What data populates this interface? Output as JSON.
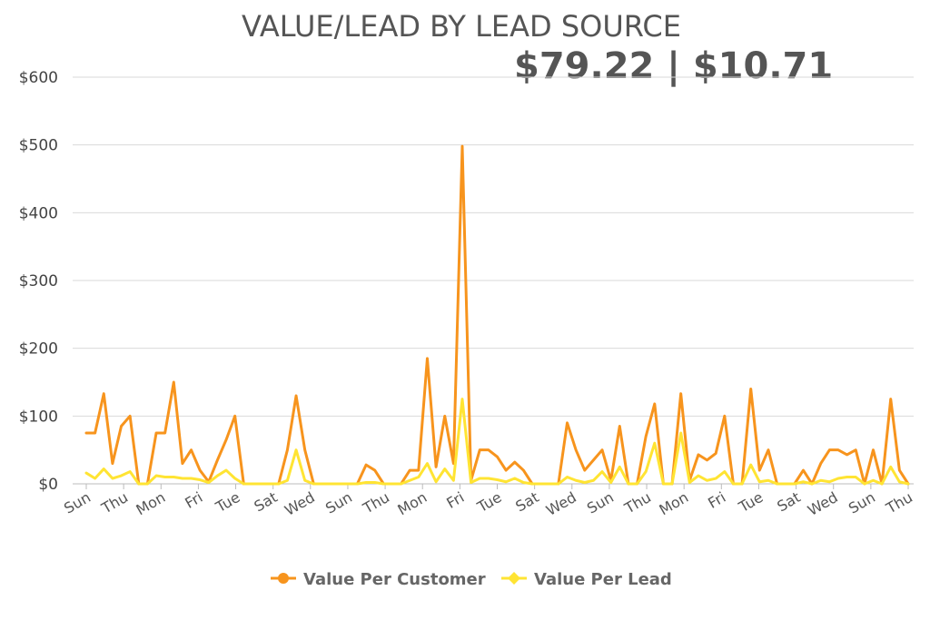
{
  "header": {
    "title": "VALUE/LEAD BY LEAD SOURCE",
    "kpi": "$79.22 | $10.71"
  },
  "chart_data": {
    "type": "line",
    "title": "VALUE/LEAD BY LEAD SOURCE",
    "ylim": [
      0,
      600
    ],
    "yticks": [
      "$0",
      "$100",
      "$200",
      "$300",
      "$400",
      "$500",
      "$600"
    ],
    "yticks_values": [
      0,
      100,
      200,
      300,
      400,
      500,
      600
    ],
    "xtick_labels": [
      "Sun",
      "Thu",
      "Mon",
      "Fri",
      "Tue",
      "Sat",
      "Wed",
      "Sun",
      "Thu",
      "Mon",
      "Fri",
      "Tue",
      "Sat",
      "Wed",
      "Sun",
      "Thu",
      "Mon",
      "Fri",
      "Tue",
      "Sat",
      "Wed",
      "Sun",
      "Thu"
    ],
    "grid": true,
    "legend_position": "bottom",
    "series": [
      {
        "name": "Value Per Customer",
        "color": "#f7941d",
        "values": [
          75,
          75,
          133,
          30,
          85,
          100,
          0,
          0,
          75,
          75,
          150,
          30,
          50,
          20,
          3,
          35,
          65,
          100,
          0,
          0,
          0,
          0,
          0,
          50,
          130,
          50,
          0,
          0,
          0,
          0,
          0,
          0,
          28,
          20,
          0,
          0,
          0,
          20,
          20,
          185,
          25,
          100,
          30,
          498,
          5,
          50,
          50,
          40,
          20,
          32,
          20,
          0,
          0,
          0,
          0,
          90,
          50,
          20,
          35,
          50,
          5,
          85,
          0,
          0,
          70,
          118,
          0,
          0,
          133,
          5,
          43,
          35,
          45,
          100,
          0,
          0,
          140,
          20,
          50,
          0,
          0,
          0,
          20,
          0,
          30,
          50,
          50,
          43,
          50,
          0,
          50,
          0,
          125,
          20,
          0
        ]
      },
      {
        "name": "Value Per Lead",
        "color": "#ffe433",
        "values": [
          16,
          8,
          22,
          8,
          12,
          18,
          0,
          0,
          12,
          10,
          10,
          8,
          8,
          6,
          2,
          12,
          20,
          8,
          0,
          0,
          0,
          0,
          0,
          5,
          50,
          5,
          0,
          0,
          0,
          0,
          0,
          0,
          2,
          2,
          0,
          0,
          0,
          5,
          10,
          30,
          3,
          22,
          5,
          125,
          2,
          8,
          8,
          6,
          3,
          8,
          2,
          0,
          0,
          0,
          0,
          10,
          5,
          2,
          5,
          18,
          2,
          25,
          0,
          0,
          18,
          60,
          0,
          0,
          75,
          2,
          12,
          5,
          8,
          18,
          0,
          0,
          28,
          3,
          5,
          0,
          0,
          0,
          3,
          0,
          5,
          3,
          8,
          10,
          10,
          0,
          5,
          0,
          25,
          3,
          0
        ]
      }
    ]
  }
}
